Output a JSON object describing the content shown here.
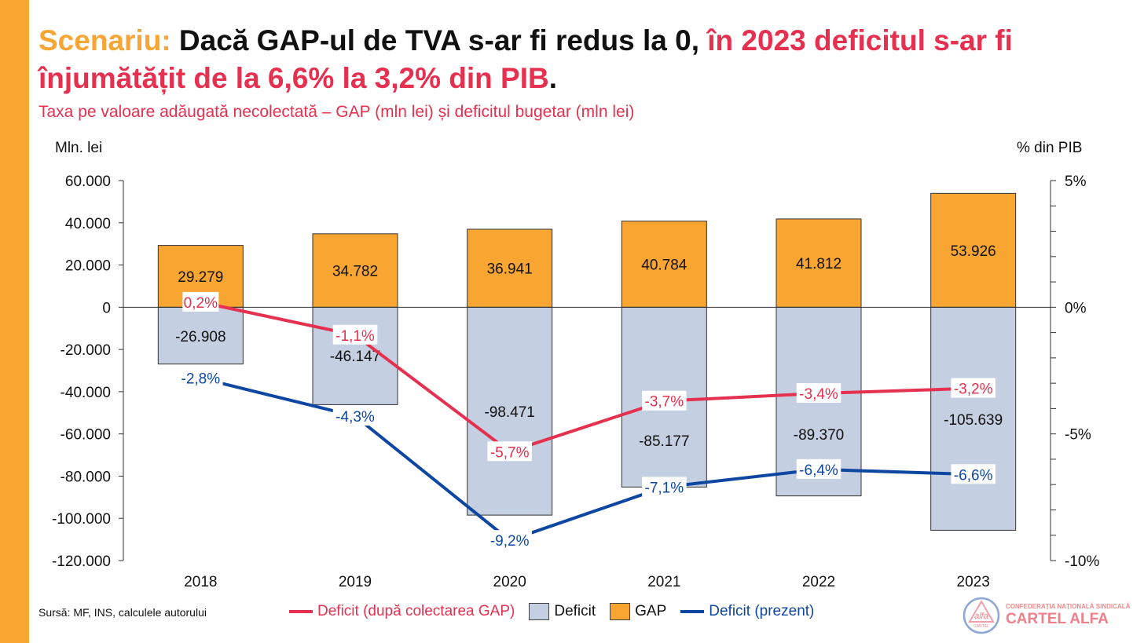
{
  "title": {
    "part1": "Scenariu:",
    "part2": " Dacă GAP-ul de TVA s-ar fi redus la 0, ",
    "part3": "în 2023 deficitul s-ar fi înjumătățit de la 6,6% la 3,2% din PIB",
    "part4": "."
  },
  "subtitle": "Taxa pe valoare adăugată necolectată – GAP (mln lei) și deficitul bugetar (mln lei)",
  "left_axis_unit": "Mln. lei",
  "right_axis_unit": "% din PIB",
  "source": "Sursă: MF, INS, calculele autorului",
  "legend": {
    "deficit_after": "Deficit (după colectarea GAP)",
    "deficit": "Deficit",
    "gap": "GAP",
    "deficit_present": "Deficit (prezent)"
  },
  "logo": {
    "org_top": "CONFEDERAȚIA NAȚIONALĂ SINDICALĂ",
    "org_name": "CARTEL ALFA",
    "mark_word": "alfa",
    "mark_sub": "CARTEL"
  },
  "colors": {
    "gap": "#f9a532",
    "deficit_bar": "#c5cfe2",
    "deficit_after_line": "#e5304f",
    "deficit_present_line": "#0e47a1",
    "accent_orange": "#f7a535"
  },
  "chart_data": {
    "type": "bar+line",
    "categories": [
      "2018",
      "2019",
      "2020",
      "2021",
      "2022",
      "2023"
    ],
    "left_axis": {
      "ylim": [
        -120000,
        60000
      ],
      "ticks": [
        60000,
        40000,
        20000,
        0,
        -20000,
        -40000,
        -60000,
        -80000,
        -100000,
        -120000
      ],
      "tick_labels": [
        "60.000",
        "40.000",
        "20.000",
        "0",
        "-20.000",
        "-40.000",
        "-60.000",
        "-80.000",
        "-100.000",
        "-120.000"
      ]
    },
    "right_axis": {
      "ylim": [
        -10,
        5
      ],
      "ticks": [
        5,
        0,
        -5,
        -10
      ],
      "tick_labels": [
        "5%",
        "0%",
        "-5%",
        "-10%"
      ]
    },
    "bar_series": [
      {
        "name": "GAP",
        "values": [
          29279,
          34782,
          36941,
          40784,
          41812,
          53926
        ],
        "labels": [
          "29.279",
          "34.782",
          "36.941",
          "40.784",
          "41.812",
          "53.926"
        ]
      },
      {
        "name": "Deficit",
        "values": [
          -26908,
          -46147,
          -98471,
          -85177,
          -89370,
          -105639
        ],
        "labels": [
          "-26.908",
          "-46.147",
          "-98.471",
          "-85.177",
          "-89.370",
          "-105.639"
        ]
      }
    ],
    "line_series": [
      {
        "name": "Deficit (după colectarea GAP)",
        "values": [
          0.2,
          -1.1,
          -5.7,
          -3.7,
          -3.4,
          -3.2
        ],
        "labels": [
          "0,2%",
          "-1,1%",
          "-5,7%",
          "-3,7%",
          "-3,4%",
          "-3,2%"
        ]
      },
      {
        "name": "Deficit (prezent)",
        "values": [
          -2.8,
          -4.3,
          -9.2,
          -7.1,
          -6.4,
          -6.6
        ],
        "labels": [
          "-2,8%",
          "-4,3%",
          "-9,2%",
          "-7,1%",
          "-6,4%",
          "-6,6%"
        ]
      }
    ]
  }
}
